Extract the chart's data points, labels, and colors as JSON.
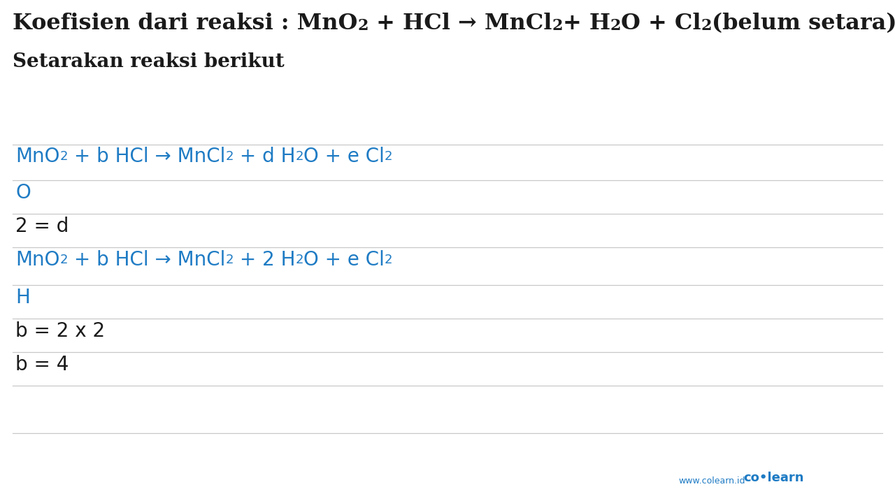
{
  "background_color": "#ffffff",
  "blue_color": "#1e7bc4",
  "black_color": "#1a1a1a",
  "line_color": "#c8c8c8",
  "figsize": [
    12.8,
    7.2
  ],
  "dpi": 100,
  "title_parts": [
    {
      "t": "Koefisien dari reaksi : MnO",
      "sub": false
    },
    {
      "t": "2",
      "sub": true
    },
    {
      "t": " + HCl → MnCl",
      "sub": false
    },
    {
      "t": "2",
      "sub": true
    },
    {
      "t": "+ H",
      "sub": false
    },
    {
      "t": "2",
      "sub": true
    },
    {
      "t": "O + Cl",
      "sub": false
    },
    {
      "t": "2",
      "sub": true
    },
    {
      "t": "(belum setara)",
      "sub": false
    }
  ],
  "subtitle": "Setarakan reaksi berikut",
  "rows": [
    {
      "parts": [
        {
          "t": "MnO",
          "sub": false
        },
        {
          "t": "2",
          "sub": true
        },
        {
          "t": " + b HCl → MnCl",
          "sub": false
        },
        {
          "t": "2",
          "sub": true
        },
        {
          "t": " + d H",
          "sub": false
        },
        {
          "t": "2",
          "sub": true
        },
        {
          "t": "O + e Cl",
          "sub": false
        },
        {
          "t": "2",
          "sub": true
        }
      ],
      "color": "#1e7bc4",
      "bold": false,
      "line_above": true,
      "line_below": true
    },
    {
      "parts": [
        {
          "t": "O",
          "sub": false
        }
      ],
      "color": "#1e7bc4",
      "bold": false,
      "line_above": false,
      "line_below": true
    },
    {
      "parts": [
        {
          "t": "2 = d",
          "sub": false
        }
      ],
      "color": "#1a1a1a",
      "bold": false,
      "line_above": false,
      "line_below": true
    },
    {
      "parts": [
        {
          "t": "MnO",
          "sub": false
        },
        {
          "t": "2",
          "sub": true
        },
        {
          "t": " + b HCl → MnCl",
          "sub": false
        },
        {
          "t": "2",
          "sub": true
        },
        {
          "t": " + 2 H",
          "sub": false
        },
        {
          "t": "2",
          "sub": true
        },
        {
          "t": "O + e Cl",
          "sub": false
        },
        {
          "t": "2",
          "sub": true
        }
      ],
      "color": "#1e7bc4",
      "bold": false,
      "line_above": false,
      "line_below": true
    },
    {
      "parts": [
        {
          "t": "H",
          "sub": false
        }
      ],
      "color": "#1e7bc4",
      "bold": false,
      "line_above": false,
      "line_below": true
    },
    {
      "parts": [
        {
          "t": "b = 2 x 2",
          "sub": false
        }
      ],
      "color": "#1a1a1a",
      "bold": false,
      "line_above": false,
      "line_below": true
    },
    {
      "parts": [
        {
          "t": "b = 4",
          "sub": false
        }
      ],
      "color": "#1a1a1a",
      "bold": false,
      "line_above": false,
      "line_below": true
    }
  ],
  "footer_url": "www.colearn.id",
  "footer_brand": "co•learn"
}
